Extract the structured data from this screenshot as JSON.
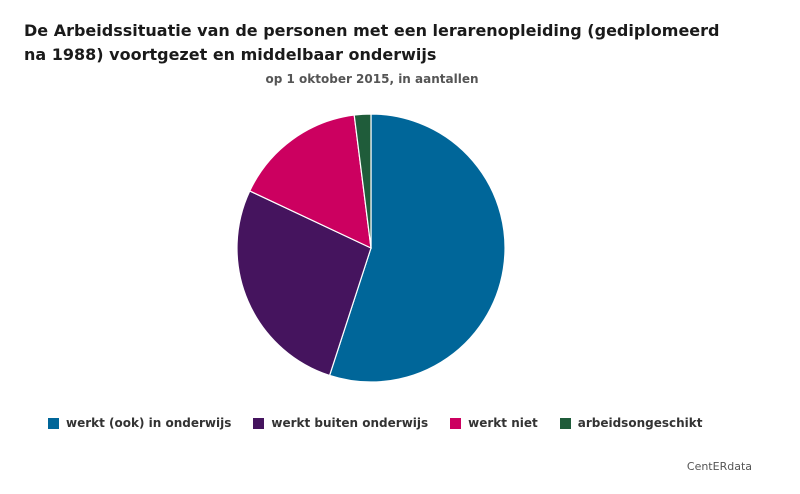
{
  "chart_data": {
    "type": "pie",
    "title": "De Arbeidssituatie van de personen met een lerarenopleiding (gediplomeerd na 1988) voortgezet en middelbaar onderwijs",
    "subtitle": "op 1 oktober 2015, in aantallen",
    "series": [
      {
        "name": "",
        "categories": [
          "werkt (ook) in onderwijs",
          "werkt buiten onderwijs",
          "werkt niet",
          "arbeidsongeschikt"
        ],
        "values": [
          55,
          27,
          16,
          2
        ]
      }
    ],
    "colors": [
      "#006699",
      "#45145e",
      "#cc0060",
      "#1f5c3a"
    ],
    "legend_position": "bottom-left"
  },
  "credit": "CentERdata"
}
